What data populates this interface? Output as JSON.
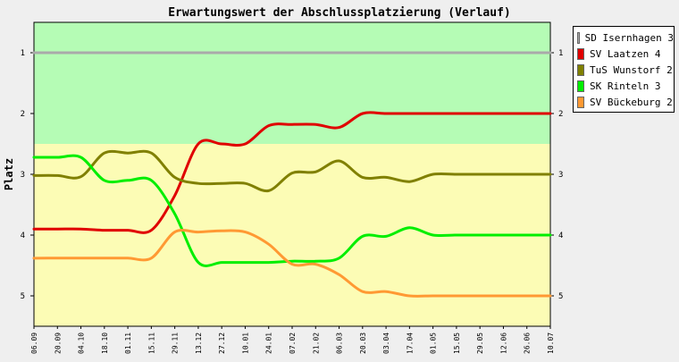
{
  "chart_data": {
    "type": "line",
    "title": "Erwartungswert der Abschlussplatzierung (Verlauf)",
    "xlabel": "",
    "ylabel": "Platz",
    "ylim": [
      5.5,
      0.5
    ],
    "y_inverted": true,
    "yticks": [
      "1",
      "2",
      "3",
      "4",
      "5"
    ],
    "grid": false,
    "legend_position": "right",
    "background_bands": [
      {
        "from": 0.5,
        "to": 2.5,
        "color": "#b5fcb5"
      },
      {
        "from": 2.5,
        "to": 5.5,
        "color": "#fcfcb5"
      }
    ],
    "categories": [
      "06.09",
      "20.09",
      "04.10",
      "18.10",
      "01.11",
      "15.11",
      "29.11",
      "13.12",
      "27.12",
      "10.01",
      "24.01",
      "07.02",
      "21.02",
      "06.03",
      "20.03",
      "03.04",
      "17.04",
      "01.05",
      "15.05",
      "29.05",
      "12.06",
      "26.06",
      "10.07"
    ],
    "series": [
      {
        "name": "SD Isernhagen 3",
        "color": "#aaaaaa",
        "values": [
          1,
          1,
          1,
          1,
          1,
          1,
          1,
          1,
          1,
          1,
          1,
          1,
          1,
          1,
          1,
          1,
          1,
          1,
          1,
          1,
          1,
          1,
          1
        ]
      },
      {
        "name": "SV Laatzen 4",
        "color": "#e00000",
        "values": [
          3.9,
          3.9,
          3.9,
          3.92,
          3.92,
          3.92,
          3.35,
          2.5,
          2.5,
          2.5,
          2.2,
          2.18,
          2.18,
          2.23,
          2,
          2,
          2,
          2,
          2,
          2,
          2,
          2,
          2
        ]
      },
      {
        "name": "TuS Wunstorf 2",
        "color": "#808000",
        "values": [
          3.02,
          3.02,
          3.04,
          2.65,
          2.65,
          2.65,
          3.05,
          3.15,
          3.15,
          3.15,
          3.27,
          2.98,
          2.96,
          2.78,
          3.05,
          3.05,
          3.12,
          3,
          3,
          3,
          3,
          3,
          3
        ]
      },
      {
        "name": "SK Rinteln 3",
        "color": "#00ee00",
        "values": [
          2.72,
          2.72,
          2.72,
          3.1,
          3.1,
          3.1,
          3.65,
          4.45,
          4.45,
          4.45,
          4.45,
          4.43,
          4.43,
          4.38,
          4.02,
          4.02,
          3.88,
          4,
          4,
          4,
          4,
          4,
          4
        ]
      },
      {
        "name": "SV Bückeburg 2",
        "color": "#ff9933",
        "values": [
          4.38,
          4.38,
          4.38,
          4.38,
          4.38,
          4.38,
          3.95,
          3.95,
          3.93,
          3.95,
          4.15,
          4.48,
          4.48,
          4.65,
          4.93,
          4.93,
          5,
          5,
          5,
          5,
          5,
          5,
          5
        ]
      }
    ]
  }
}
